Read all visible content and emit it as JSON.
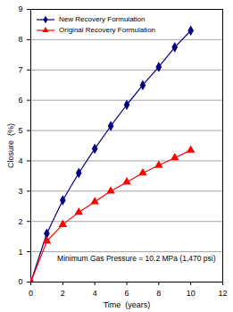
{
  "chart_data": {
    "type": "line",
    "x_label": "Time  (years)",
    "y_label": "Closure  (%)",
    "annotation": "Minimum Gas Pressure = 10.2 MPa (1,470 psi)",
    "x": [
      0,
      1,
      2,
      3,
      4,
      5,
      6,
      7,
      8,
      9,
      10
    ],
    "series": [
      {
        "name": "New Recovery Formulation",
        "color": "#000080",
        "marker": "diamond",
        "line_style": "solid",
        "values": [
          0,
          1.6,
          2.7,
          3.6,
          4.4,
          5.15,
          5.85,
          6.5,
          7.1,
          7.75,
          8.3
        ]
      },
      {
        "name": "Original Recovery Formulation",
        "color": "#ff0000",
        "marker": "triangle",
        "line_style": "solid",
        "values": [
          0,
          1.35,
          1.9,
          2.3,
          2.65,
          3.0,
          3.3,
          3.6,
          3.85,
          4.1,
          4.35
        ]
      }
    ],
    "xlim": [
      0,
      12
    ],
    "xticks": [
      0,
      2,
      4,
      6,
      8,
      10,
      12
    ],
    "ylim": [
      0,
      9
    ],
    "yticks": [
      0,
      1,
      2,
      3,
      4,
      5,
      6,
      7,
      8,
      9
    ],
    "grid": "y",
    "legend": "top-left"
  }
}
